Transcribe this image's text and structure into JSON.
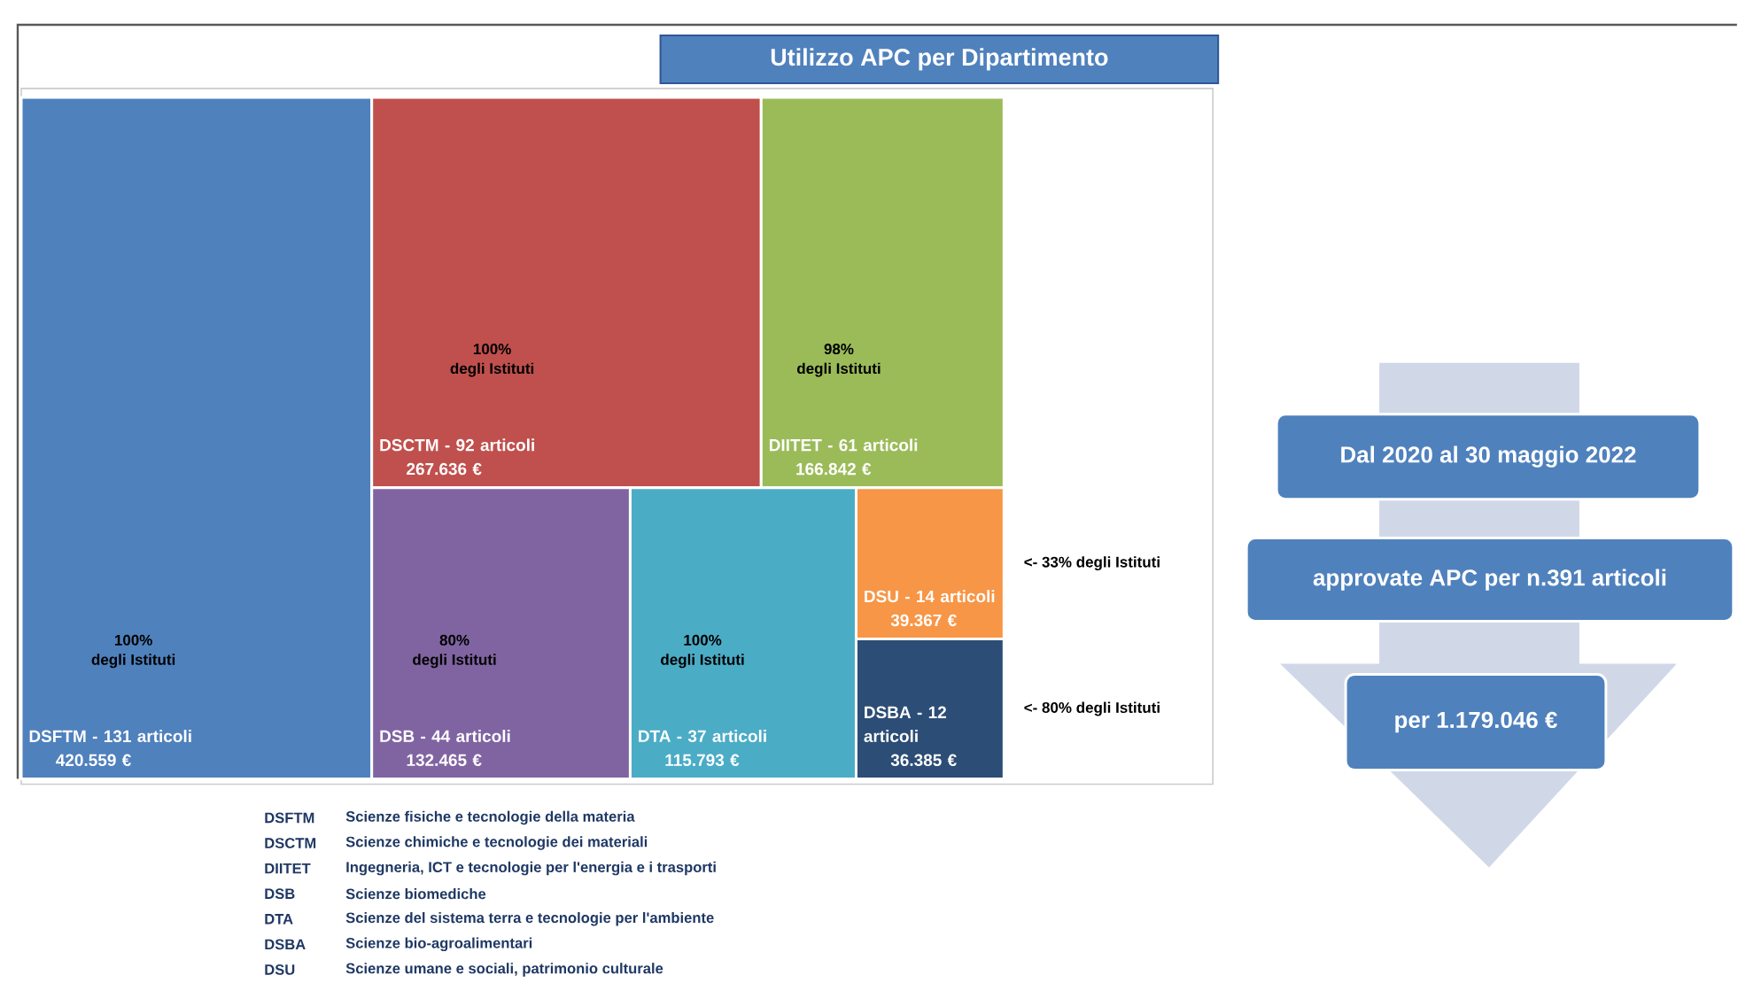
{
  "chart_data": {
    "type": "other",
    "title": "Utilizzo APC per Dipartimento",
    "categories": [
      "DSFTM - 131 articoli",
      "DSCTM - 92 articoli",
      "DIITET - 61 articoli",
      "DSB - 44 articoli",
      "DTA - 37 articoli",
      "DSU - 14 articoli",
      "DSBA - 12 articoli"
    ],
    "values": [
      420559,
      267636,
      166842,
      132465,
      115793,
      39367,
      36385
    ],
    "value_labels": [
      "420.559 €",
      "267.636 €",
      "166.842 €",
      "132.465 €",
      "115.793 €",
      "39.367 €",
      "36.385 €"
    ],
    "colors": [
      "#4f81bd",
      "#c0504d",
      "#9bbb59",
      "#8064a2",
      "#4bacc6",
      "#f79646",
      "#2c4d75"
    ],
    "annotations": [
      "100%",
      "degli Istituti",
      "100%",
      "degli Istituti",
      "98%",
      "degli Istituti",
      "80%",
      "degli Istituti",
      "100%",
      "degli Istituti",
      "<- 33% degli Istituti",
      "<- 80% degli Istituti",
      "Dal 2020 al 30 maggio 2022",
      "approvate APC per n.391 articoli",
      "per 1.179.046 €",
      "DSFTM",
      "Scienze fisiche e tecnologie della materia",
      "DSCTM",
      "Scienze chimiche e tecnologie dei materiali",
      "DIITET",
      "Ingegneria, ICT e tecnologie per l'energia e i trasporti",
      "DSB",
      "Scienze biomediche",
      "DTA",
      "Scienze del sistema terra e tecnologie per l'ambiente",
      "DSBA",
      "Scienze bio-agroalimentari",
      "DSU",
      "Scienze umane e sociali, patrimonio culturale"
    ]
  }
}
